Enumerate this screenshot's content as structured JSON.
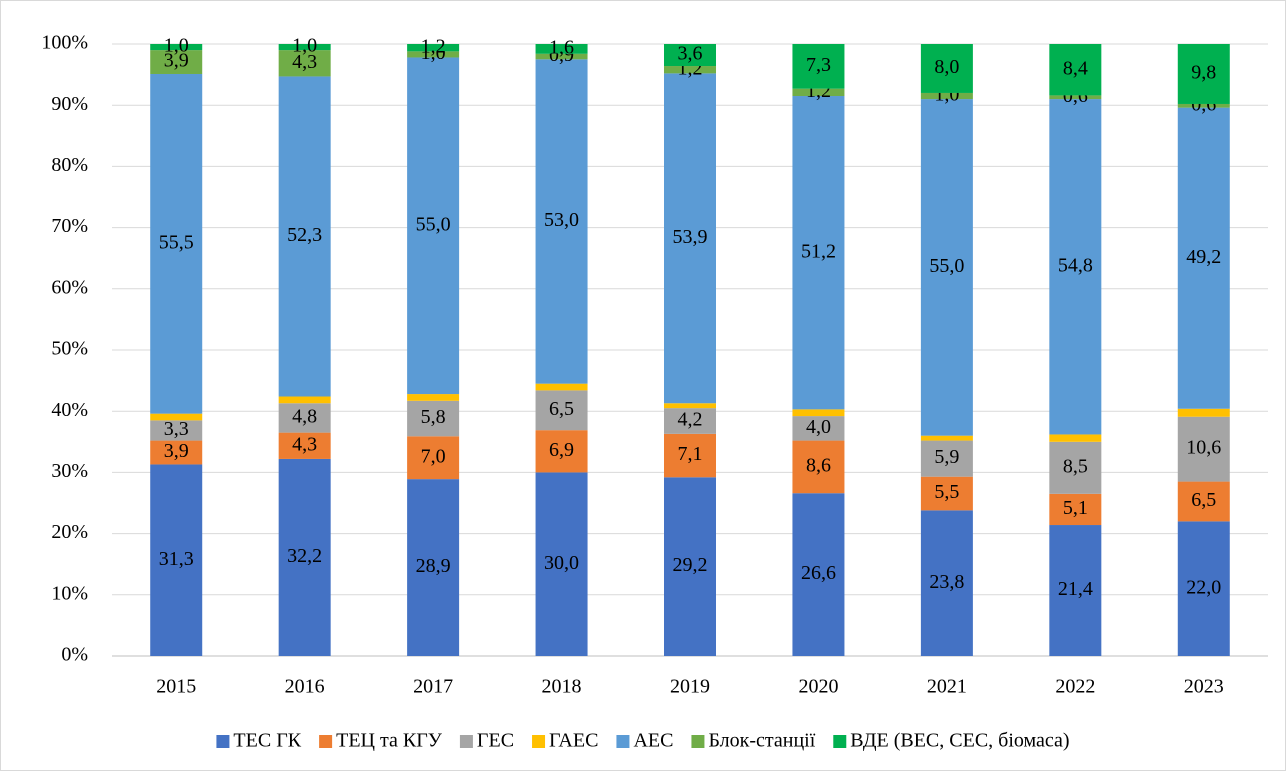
{
  "chart_data": {
    "type": "bar",
    "stacked": true,
    "categories": [
      "2015",
      "2016",
      "2017",
      "2018",
      "2019",
      "2020",
      "2021",
      "2022",
      "2023"
    ],
    "series": [
      {
        "name": "ТЕС ГК",
        "color": "#4472c4",
        "values": [
          31.3,
          32.2,
          28.9,
          30.0,
          29.2,
          26.6,
          23.8,
          21.4,
          22.0
        ],
        "value_labels": [
          "31,3",
          "32,2",
          "28,9",
          "30,0",
          "29,2",
          "26,6",
          "23,8",
          "21,4",
          "22,0"
        ]
      },
      {
        "name": "ТЕЦ та КГУ",
        "color": "#ed7d31",
        "values": [
          3.9,
          4.3,
          7.0,
          6.9,
          7.1,
          8.6,
          5.5,
          5.1,
          6.5
        ],
        "value_labels": [
          "3,9",
          "4,3",
          "7,0",
          "6,9",
          "7,1",
          "8,6",
          "5,5",
          "5,1",
          "6,5"
        ]
      },
      {
        "name": "ГЕС",
        "color": "#a5a5a5",
        "values": [
          3.3,
          4.8,
          5.8,
          6.5,
          4.2,
          4.0,
          5.9,
          8.5,
          10.6
        ],
        "value_labels": [
          "3,3",
          "4,8",
          "5,8",
          "6,5",
          "4,2",
          "4,0",
          "5,9",
          "8,5",
          "10,6"
        ]
      },
      {
        "name": "ГАЕС",
        "color": "#ffc000",
        "values": [
          1.1,
          1.1,
          1.1,
          1.1,
          0.8,
          1.1,
          0.8,
          1.2,
          1.3
        ]
      },
      {
        "name": "АЕС",
        "color": "#5b9bd5",
        "values": [
          55.5,
          52.3,
          55.0,
          53.0,
          53.9,
          51.2,
          55.0,
          54.8,
          49.2
        ],
        "value_labels": [
          "55,5",
          "52,3",
          "55,0",
          "53,0",
          "53,9",
          "51,2",
          "55,0",
          "54,8",
          "49,2"
        ]
      },
      {
        "name": "Блок-станції",
        "color": "#70ad47",
        "values": [
          3.9,
          4.3,
          1.0,
          0.9,
          1.2,
          1.2,
          1.0,
          0.6,
          0.6
        ],
        "value_labels": [
          "3,9",
          "4,3",
          "1,0",
          "0,9",
          "1,2",
          "1,2",
          "1,0",
          "0,6",
          "0,6"
        ]
      },
      {
        "name": "ВДЕ (ВЕС, СЕС, біомаса)",
        "color": "#00b050",
        "values": [
          1.0,
          1.0,
          1.2,
          1.6,
          3.6,
          7.3,
          8.0,
          8.4,
          9.8
        ],
        "value_labels": [
          "1,0",
          "1,0",
          "1,2",
          "1,6",
          "3,6",
          "7,3",
          "8,0",
          "8,4",
          "9,8"
        ]
      }
    ],
    "ylim": [
      0,
      100
    ],
    "yticks": [
      {
        "value": 0,
        "label": "0%"
      },
      {
        "value": 10,
        "label": "10%"
      },
      {
        "value": 20,
        "label": "20%"
      },
      {
        "value": 30,
        "label": "30%"
      },
      {
        "value": 40,
        "label": "40%"
      },
      {
        "value": 50,
        "label": "50%"
      },
      {
        "value": 60,
        "label": "60%"
      },
      {
        "value": 70,
        "label": "70%"
      },
      {
        "value": 80,
        "label": "80%"
      },
      {
        "value": 90,
        "label": "90%"
      },
      {
        "value": 100,
        "label": "100%"
      }
    ],
    "grid": true,
    "legend": "bottom"
  }
}
